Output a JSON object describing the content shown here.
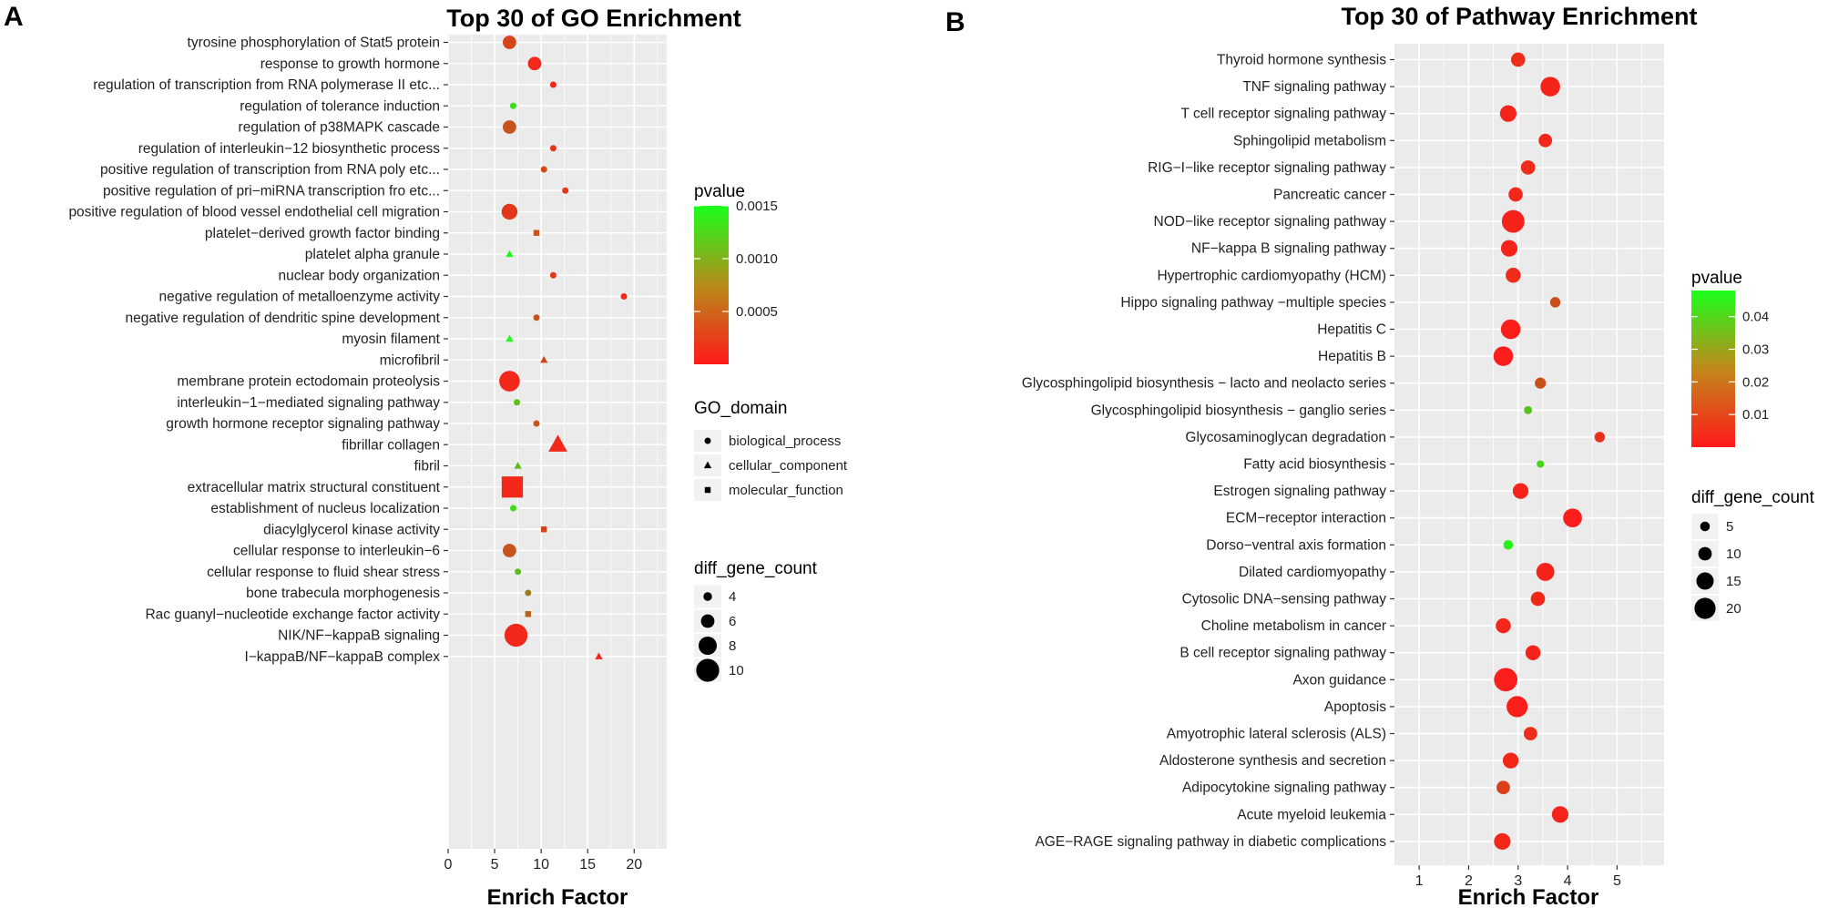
{
  "figure": {
    "panel_a_letter": "A",
    "panel_b_letter": "B"
  },
  "chart_data": [
    {
      "type": "scatter",
      "title": "Top 30 of GO Enrichment",
      "xlabel": "Enrich Factor",
      "ylabel": "",
      "xlim": [
        0,
        23.5
      ],
      "xticks": [
        0,
        5,
        10,
        15,
        20
      ],
      "grid": true,
      "terms": [
        {
          "label": "tyrosine phosphorylation of Stat5 protein",
          "x": 6.6,
          "count": 6,
          "pvalue": 0.0003,
          "domain": "biological_process"
        },
        {
          "label": "response to growth hormone",
          "x": 9.3,
          "count": 6,
          "pvalue": 0.0001,
          "domain": "biological_process"
        },
        {
          "label": "regulation of transcription from RNA polymerase II etc...",
          "x": 11.3,
          "count": 3,
          "pvalue": 0.0001,
          "domain": "biological_process"
        },
        {
          "label": "regulation of tolerance induction",
          "x": 7.0,
          "count": 3,
          "pvalue": 0.0013,
          "domain": "biological_process"
        },
        {
          "label": "regulation of p38MAPK cascade",
          "x": 6.6,
          "count": 6,
          "pvalue": 0.0004,
          "domain": "biological_process"
        },
        {
          "label": "regulation of interleukin−12 biosynthetic process",
          "x": 11.3,
          "count": 3,
          "pvalue": 0.0002,
          "domain": "biological_process"
        },
        {
          "label": "positive regulation of transcription from RNA poly etc...",
          "x": 10.3,
          "count": 3,
          "pvalue": 0.0003,
          "domain": "biological_process"
        },
        {
          "label": "positive regulation of pri−miRNA transcription fro etc...",
          "x": 12.6,
          "count": 3,
          "pvalue": 0.0002,
          "domain": "biological_process"
        },
        {
          "label": "positive regulation of blood vessel endothelial cell migration",
          "x": 6.6,
          "count": 7,
          "pvalue": 0.0002,
          "domain": "biological_process"
        },
        {
          "label": "platelet−derived growth factor binding",
          "x": 9.5,
          "count": 3,
          "pvalue": 0.0004,
          "domain": "molecular_function"
        },
        {
          "label": "platelet alpha granule",
          "x": 6.6,
          "count": 3,
          "pvalue": 0.0015,
          "domain": "cellular_component"
        },
        {
          "label": "nuclear body organization",
          "x": 11.3,
          "count": 3,
          "pvalue": 0.0002,
          "domain": "biological_process"
        },
        {
          "label": "negative regulation of metalloenzyme activity",
          "x": 18.9,
          "count": 3,
          "pvalue": 0.0001,
          "domain": "biological_process"
        },
        {
          "label": "negative regulation of dendritic spine development",
          "x": 9.5,
          "count": 3,
          "pvalue": 0.0004,
          "domain": "biological_process"
        },
        {
          "label": "myosin filament",
          "x": 6.6,
          "count": 3,
          "pvalue": 0.0015,
          "domain": "cellular_component"
        },
        {
          "label": "microfibril",
          "x": 10.3,
          "count": 3,
          "pvalue": 0.0003,
          "domain": "cellular_component"
        },
        {
          "label": "membrane protein ectodomain proteolysis",
          "x": 6.6,
          "count": 9,
          "pvalue": 0.0001,
          "domain": "biological_process"
        },
        {
          "label": "interleukin−1−mediated signaling pathway",
          "x": 7.4,
          "count": 3,
          "pvalue": 0.0011,
          "domain": "biological_process"
        },
        {
          "label": "growth hormone receptor signaling pathway",
          "x": 9.5,
          "count": 3,
          "pvalue": 0.0004,
          "domain": "biological_process"
        },
        {
          "label": "fibrillar collagen",
          "x": 11.8,
          "count": 7,
          "pvalue": 0.0001,
          "domain": "cellular_component"
        },
        {
          "label": "fibril",
          "x": 7.5,
          "count": 3,
          "pvalue": 0.0011,
          "domain": "cellular_component"
        },
        {
          "label": "extracellular matrix structural constituent",
          "x": 6.9,
          "count": 10,
          "pvalue": 0.0001,
          "domain": "molecular_function"
        },
        {
          "label": "establishment of nucleus localization",
          "x": 7.0,
          "count": 3,
          "pvalue": 0.0013,
          "domain": "biological_process"
        },
        {
          "label": "diacylglycerol kinase activity",
          "x": 10.3,
          "count": 3,
          "pvalue": 0.0003,
          "domain": "molecular_function"
        },
        {
          "label": "cellular response to interleukin−6",
          "x": 6.6,
          "count": 6,
          "pvalue": 0.0004,
          "domain": "biological_process"
        },
        {
          "label": "cellular response to fluid shear stress",
          "x": 7.5,
          "count": 3,
          "pvalue": 0.0011,
          "domain": "biological_process"
        },
        {
          "label": "bone trabecula morphogenesis",
          "x": 8.6,
          "count": 3,
          "pvalue": 0.0007,
          "domain": "biological_process"
        },
        {
          "label": "Rac guanyl−nucleotide exchange factor activity",
          "x": 8.6,
          "count": 3,
          "pvalue": 0.0005,
          "domain": "molecular_function"
        },
        {
          "label": "NIK/NF−kappaB signaling",
          "x": 7.3,
          "count": 10,
          "pvalue": 0.0001,
          "domain": "biological_process"
        },
        {
          "label": "I−kappaB/NF−kappaB complex",
          "x": 16.2,
          "count": 3,
          "pvalue": 0.0001,
          "domain": "cellular_component"
        }
      ],
      "color_legend": {
        "title": "pvalue",
        "labels": [
          "0.0015",
          "0.0010",
          "0.0005"
        ],
        "values": [
          0.0015,
          0.001,
          0.0005
        ],
        "min": 0.0,
        "max": 0.0015,
        "low_color": "#FF1A1A",
        "high_color": "#1AFF1A"
      },
      "shape_legend": {
        "title": "GO_domain",
        "items": [
          {
            "label": "biological_process",
            "shape": "circle"
          },
          {
            "label": "cellular_component",
            "shape": "triangle"
          },
          {
            "label": "molecular_function",
            "shape": "square"
          }
        ]
      },
      "size_legend": {
        "title": "diff_gene_count",
        "labels": [
          "4",
          "6",
          "8",
          "10"
        ],
        "values": [
          4,
          6,
          8,
          10
        ]
      }
    },
    {
      "type": "scatter",
      "title": "Top 30 of Pathway Enrichment",
      "xlabel": "Enrich Factor",
      "ylabel": "",
      "xlim": [
        0.5,
        5.95
      ],
      "xticks": [
        1,
        2,
        3,
        4,
        5
      ],
      "grid": true,
      "terms": [
        {
          "label": "Thyroid hormone synthesis",
          "x": 3.0,
          "count": 11,
          "pvalue": 0.004
        },
        {
          "label": "TNF signaling pathway",
          "x": 3.65,
          "count": 18,
          "pvalue": 0.002
        },
        {
          "label": "T cell receptor signaling pathway",
          "x": 2.8,
          "count": 14,
          "pvalue": 0.002
        },
        {
          "label": "Sphingolipid metabolism",
          "x": 3.55,
          "count": 10,
          "pvalue": 0.003
        },
        {
          "label": "RIG−I−like receptor signaling pathway",
          "x": 3.2,
          "count": 11,
          "pvalue": 0.004
        },
        {
          "label": "Pancreatic cancer",
          "x": 2.95,
          "count": 11,
          "pvalue": 0.003
        },
        {
          "label": "NOD−like receptor signaling pathway",
          "x": 2.9,
          "count": 22,
          "pvalue": 0.002
        },
        {
          "label": "NF−kappa B signaling pathway",
          "x": 2.82,
          "count": 14,
          "pvalue": 0.002
        },
        {
          "label": "Hypertrophic cardiomyopathy (HCM)",
          "x": 2.9,
          "count": 12,
          "pvalue": 0.004
        },
        {
          "label": "Hippo signaling pathway −multiple species",
          "x": 3.75,
          "count": 6,
          "pvalue": 0.012
        },
        {
          "label": "Hepatitis C",
          "x": 2.85,
          "count": 18,
          "pvalue": 0.001
        },
        {
          "label": "Hepatitis B",
          "x": 2.7,
          "count": 18,
          "pvalue": 0.001
        },
        {
          "label": "Glycosphingolipid biosynthesis − lacto and neolacto series",
          "x": 3.45,
          "count": 7,
          "pvalue": 0.012
        },
        {
          "label": "Glycosphingolipid biosynthesis − ganglio series",
          "x": 3.2,
          "count": 3,
          "pvalue": 0.036
        },
        {
          "label": "Glycosaminoglycan degradation",
          "x": 4.65,
          "count": 6,
          "pvalue": 0.005
        },
        {
          "label": "Fatty acid biosynthesis",
          "x": 3.45,
          "count": 2,
          "pvalue": 0.04
        },
        {
          "label": "Estrogen signaling pathway",
          "x": 3.05,
          "count": 13,
          "pvalue": 0.002
        },
        {
          "label": "ECM−receptor interaction",
          "x": 4.1,
          "count": 17,
          "pvalue": 0.001
        },
        {
          "label": "Dorso−ventral axis formation",
          "x": 2.8,
          "count": 5,
          "pvalue": 0.045
        },
        {
          "label": "Dilated cardiomyopathy",
          "x": 3.55,
          "count": 16,
          "pvalue": 0.002
        },
        {
          "label": "Cytosolic DNA−sensing pathway",
          "x": 3.4,
          "count": 11,
          "pvalue": 0.003
        },
        {
          "label": "Choline metabolism in cancer",
          "x": 2.7,
          "count": 12,
          "pvalue": 0.003
        },
        {
          "label": "B cell receptor signaling pathway",
          "x": 3.3,
          "count": 12,
          "pvalue": 0.002
        },
        {
          "label": "Axon guidance",
          "x": 2.75,
          "count": 23,
          "pvalue": 0.001
        },
        {
          "label": "Apoptosis",
          "x": 2.98,
          "count": 20,
          "pvalue": 0.001
        },
        {
          "label": "Amyotrophic lateral sclerosis (ALS)",
          "x": 3.25,
          "count": 10,
          "pvalue": 0.004
        },
        {
          "label": "Aldosterone synthesis and secretion",
          "x": 2.85,
          "count": 13,
          "pvalue": 0.003
        },
        {
          "label": "Adipocytokine signaling pathway",
          "x": 2.7,
          "count": 10,
          "pvalue": 0.008
        },
        {
          "label": "Acute myeloid leukemia",
          "x": 3.85,
          "count": 14,
          "pvalue": 0.002
        },
        {
          "label": "AGE−RAGE signaling pathway in diabetic complications",
          "x": 2.68,
          "count": 14,
          "pvalue": 0.003
        }
      ],
      "color_legend": {
        "title": "pvalue",
        "labels": [
          "0.04",
          "0.03",
          "0.02",
          "0.01"
        ],
        "values": [
          0.04,
          0.03,
          0.02,
          0.01
        ],
        "min": 0.0,
        "max": 0.048,
        "low_color": "#FF1A1A",
        "high_color": "#1AFF1A"
      },
      "size_legend": {
        "title": "diff_gene_count",
        "labels": [
          "5",
          "10",
          "15",
          "20"
        ],
        "values": [
          5,
          10,
          15,
          20
        ]
      }
    }
  ]
}
